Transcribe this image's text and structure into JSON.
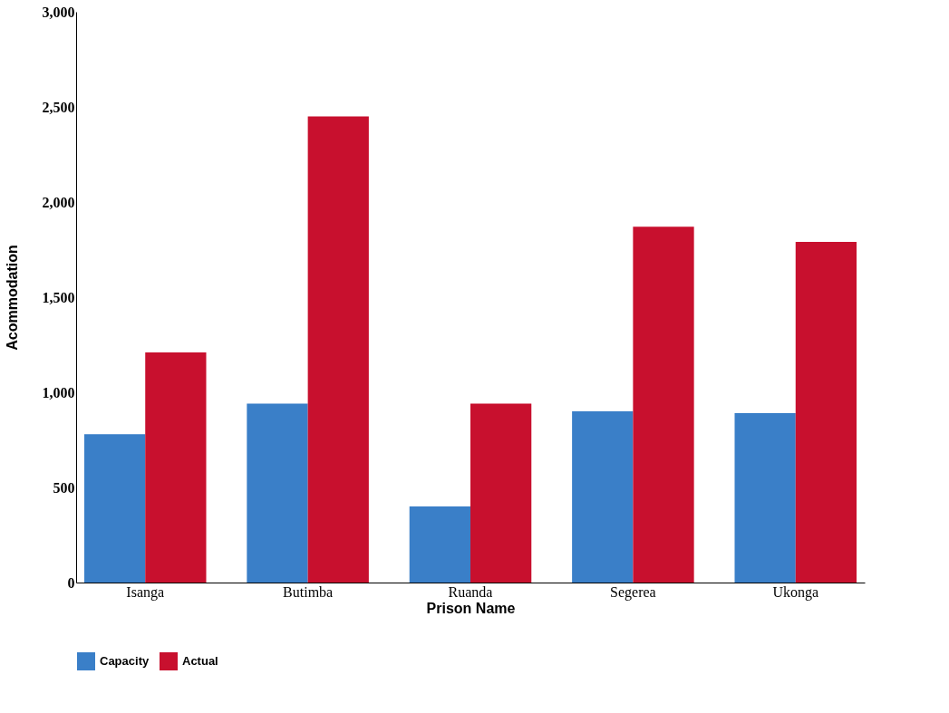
{
  "chart_data": {
    "type": "bar",
    "xlabel": "Prison Name",
    "ylabel": "Acommodation",
    "categories": [
      "Isanga",
      "Butimba",
      "Ruanda",
      "Segerea",
      "Ukonga"
    ],
    "series": [
      {
        "name": "Capacity",
        "color": "#3a7fc8",
        "values": [
          780,
          940,
          400,
          900,
          890
        ]
      },
      {
        "name": "Actual",
        "color": "#c8102e",
        "values": [
          1210,
          2450,
          940,
          1870,
          1790
        ]
      }
    ],
    "ylim": [
      0,
      3000
    ],
    "yticks": [
      0,
      500,
      {
        "value": 1000,
        "label": "1,000"
      },
      {
        "value": 1500,
        "label": "1,500"
      },
      {
        "value": 2000,
        "label": "2,000"
      },
      {
        "value": 2500,
        "label": "2,500"
      },
      {
        "value": 3000,
        "label": "3,000"
      }
    ],
    "grid": false,
    "legend": "bottom"
  }
}
